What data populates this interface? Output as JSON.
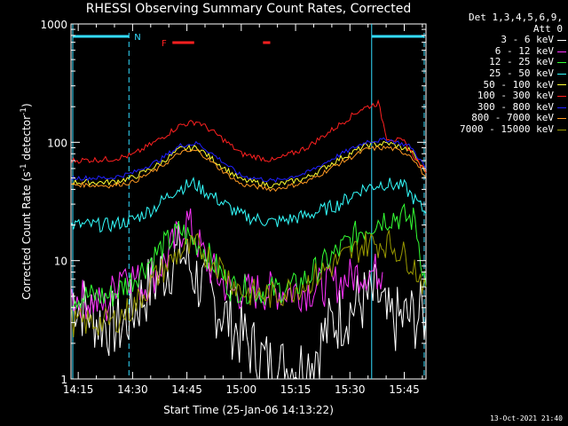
{
  "chart_data": {
    "type": "line",
    "title": "RHESSI Observing Summary Count Rates, Corrected",
    "xlabel": "Start Time (25-Jan-06 14:13:22)",
    "ylabel": "Corrected Count Rate (s",
    "ylabel_sup": "-1",
    "ylabel_mid": " detector",
    "ylabel_sup2": "-1",
    "ylabel_end": ")",
    "yscale": "log",
    "ylim": [
      1,
      1000
    ],
    "xlim_minutes": [
      14.2167,
      15.85
    ],
    "x_ticks": [
      "14:15",
      "14:30",
      "14:45",
      "15:00",
      "15:15",
      "15:30",
      "15:45"
    ],
    "y_ticks": [
      "1",
      "10",
      "100",
      "1000"
    ],
    "legend_header": [
      "Det 1,3,4,5,6,9,",
      "Att 0"
    ],
    "series": [
      {
        "name": "3 - 6 keV",
        "color": "#ffffff",
        "key_points": [
          [
            14.22,
            5
          ],
          [
            14.35,
            3
          ],
          [
            14.45,
            2.8
          ],
          [
            14.58,
            6
          ],
          [
            14.72,
            12
          ],
          [
            14.82,
            6
          ],
          [
            14.95,
            3
          ],
          [
            15.05,
            1.8
          ],
          [
            15.15,
            1.2
          ],
          [
            15.3,
            1.3
          ],
          [
            15.42,
            3
          ],
          [
            15.55,
            4.5
          ],
          [
            15.63,
            5
          ],
          [
            15.67,
            3
          ],
          [
            15.75,
            3.2
          ],
          [
            15.85,
            3.5
          ]
        ]
      },
      {
        "name": "6 - 12 keV",
        "color": "#ff33ff",
        "key_points": [
          [
            14.22,
            5
          ],
          [
            14.32,
            4.5
          ],
          [
            14.38,
            4
          ],
          [
            14.45,
            9
          ],
          [
            14.55,
            6
          ],
          [
            14.65,
            10
          ],
          [
            14.75,
            22
          ],
          [
            14.85,
            9
          ],
          [
            14.95,
            5.5
          ],
          [
            15.1,
            5.5
          ],
          [
            15.3,
            5.6
          ],
          [
            15.45,
            6.5
          ],
          [
            15.55,
            8
          ],
          [
            15.65,
            8
          ]
        ]
      },
      {
        "name": "12 - 25 keV",
        "color": "#33ff33",
        "key_points": [
          [
            14.22,
            5
          ],
          [
            14.4,
            5
          ],
          [
            14.5,
            7
          ],
          [
            14.62,
            12
          ],
          [
            14.72,
            18
          ],
          [
            14.82,
            13
          ],
          [
            14.95,
            6
          ],
          [
            15.1,
            5.5
          ],
          [
            15.25,
            6
          ],
          [
            15.4,
            10
          ],
          [
            15.55,
            18
          ],
          [
            15.63,
            22
          ],
          [
            15.7,
            24
          ],
          [
            15.8,
            22
          ],
          [
            15.85,
            6
          ]
        ]
      },
      {
        "name": "25 - 50 keV",
        "color": "#33ffff",
        "key_points": [
          [
            14.22,
            20
          ],
          [
            14.4,
            20
          ],
          [
            14.5,
            22
          ],
          [
            14.6,
            28
          ],
          [
            14.7,
            40
          ],
          [
            14.78,
            45
          ],
          [
            14.9,
            32
          ],
          [
            15.0,
            24
          ],
          [
            15.15,
            21
          ],
          [
            15.3,
            24
          ],
          [
            15.45,
            30
          ],
          [
            15.55,
            40
          ],
          [
            15.65,
            45
          ],
          [
            15.75,
            42
          ],
          [
            15.85,
            25
          ]
        ]
      },
      {
        "name": "50 - 100 keV",
        "color": "#ffff33",
        "key_points": [
          [
            14.22,
            46
          ],
          [
            14.4,
            46
          ],
          [
            14.5,
            50
          ],
          [
            14.62,
            65
          ],
          [
            14.72,
            88
          ],
          [
            14.8,
            90
          ],
          [
            14.9,
            65
          ],
          [
            15.0,
            48
          ],
          [
            15.15,
            43
          ],
          [
            15.3,
            50
          ],
          [
            15.45,
            72
          ],
          [
            15.58,
            95
          ],
          [
            15.68,
            98
          ],
          [
            15.78,
            85
          ],
          [
            15.85,
            55
          ]
        ]
      },
      {
        "name": "100 - 300 keV",
        "color": "#ff2020",
        "key_points": [
          [
            14.22,
            70
          ],
          [
            14.4,
            72
          ],
          [
            14.5,
            78
          ],
          [
            14.62,
            105
          ],
          [
            14.72,
            140
          ],
          [
            14.8,
            150
          ],
          [
            14.9,
            112
          ],
          [
            15.0,
            80
          ],
          [
            15.15,
            70
          ],
          [
            15.3,
            90
          ],
          [
            15.45,
            140
          ],
          [
            15.55,
            190
          ],
          [
            15.63,
            215
          ],
          [
            15.67,
            110
          ],
          [
            15.75,
            100
          ],
          [
            15.85,
            55
          ]
        ]
      },
      {
        "name": "300 - 800 keV",
        "color": "#2020ff",
        "key_points": [
          [
            14.22,
            50
          ],
          [
            14.4,
            50
          ],
          [
            14.5,
            55
          ],
          [
            14.62,
            70
          ],
          [
            14.72,
            94
          ],
          [
            14.8,
            98
          ],
          [
            14.9,
            72
          ],
          [
            15.0,
            52
          ],
          [
            15.15,
            47
          ],
          [
            15.3,
            55
          ],
          [
            15.45,
            78
          ],
          [
            15.58,
            102
          ],
          [
            15.68,
            105
          ],
          [
            15.78,
            92
          ],
          [
            15.85,
            60
          ]
        ]
      },
      {
        "name": "800 - 7000 keV",
        "color": "#ff9922",
        "key_points": [
          [
            14.22,
            44
          ],
          [
            14.4,
            43
          ],
          [
            14.5,
            46
          ],
          [
            14.62,
            60
          ],
          [
            14.72,
            82
          ],
          [
            14.8,
            85
          ],
          [
            14.9,
            60
          ],
          [
            15.0,
            44
          ],
          [
            15.15,
            40
          ],
          [
            15.3,
            46
          ],
          [
            15.45,
            66
          ],
          [
            15.58,
            88
          ],
          [
            15.68,
            90
          ],
          [
            15.78,
            78
          ],
          [
            15.85,
            50
          ]
        ]
      },
      {
        "name": "7000 - 15000 keV",
        "color": "#999900",
        "key_points": [
          [
            14.22,
            3
          ],
          [
            14.4,
            3
          ],
          [
            14.5,
            4
          ],
          [
            14.6,
            7
          ],
          [
            14.72,
            12
          ],
          [
            14.8,
            13
          ],
          [
            14.9,
            9
          ],
          [
            15.0,
            5.5
          ],
          [
            15.15,
            5
          ],
          [
            15.3,
            6.5
          ],
          [
            15.45,
            10
          ],
          [
            15.58,
            14
          ],
          [
            15.68,
            14
          ],
          [
            15.78,
            10
          ],
          [
            15.85,
            6
          ]
        ]
      }
    ],
    "flags": {
      "night_label": "N",
      "flare_label": "F",
      "attenuator_color": "#33ddff",
      "flare_color": "#ff2020"
    }
  },
  "footer": {
    "timestamp": "13-Oct-2021 21:40"
  }
}
